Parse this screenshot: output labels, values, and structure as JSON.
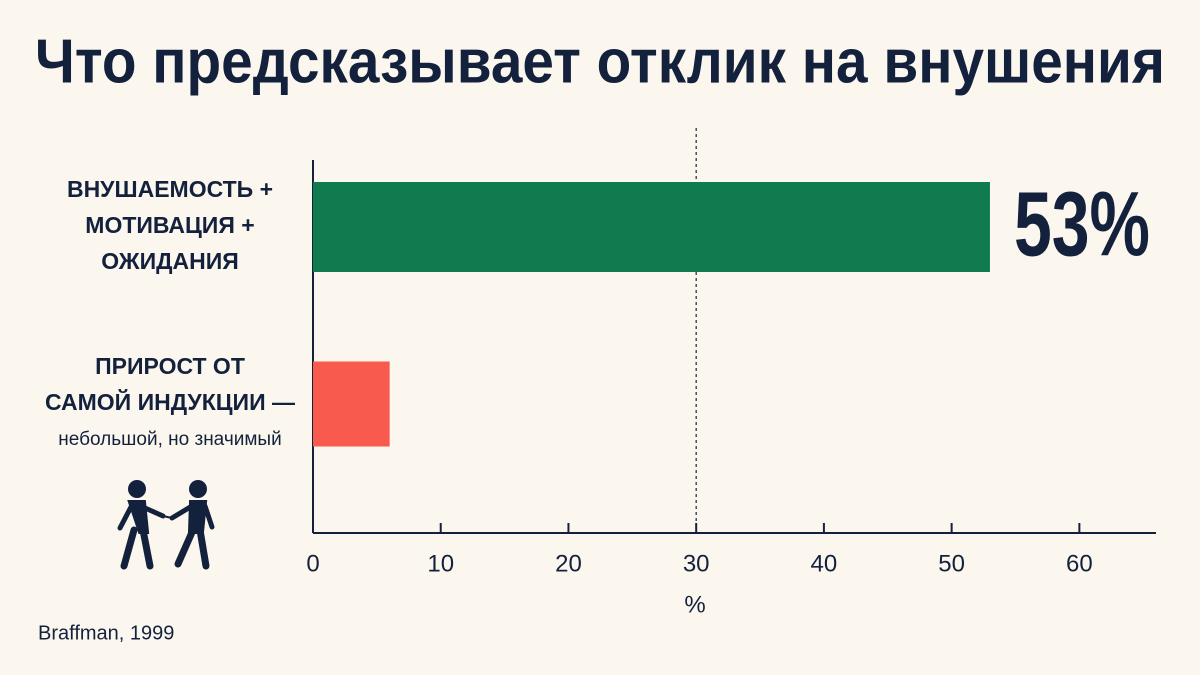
{
  "chart_data": {
    "type": "hbar",
    "title": "Что предсказывает отклик на внушения",
    "categories": [
      [
        "ВНУШАЕМОСТЬ +",
        "МОТИВАЦИЯ +",
        "ОЖИДАНИЯ"
      ],
      [
        "ПРИРОСТ ОТ",
        "САМОЙ ИНДУКЦИИ —",
        "небольшой, но значимый"
      ]
    ],
    "values": [
      53,
      6
    ],
    "value_labels": [
      "53%",
      null
    ],
    "colors": [
      "#0f7b4f",
      "#f95a4e"
    ],
    "xlim": [
      0,
      66
    ],
    "xticks": [
      0,
      10,
      20,
      30,
      40,
      50,
      60
    ],
    "x_label": "%",
    "reference_line": 30,
    "source": "Braffman, 1999"
  }
}
